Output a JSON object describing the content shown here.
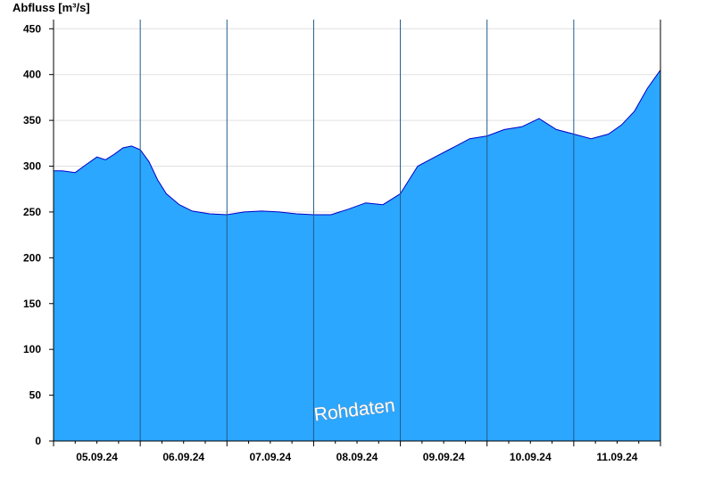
{
  "chart_data": {
    "type": "area",
    "ylabel": "Abfluss [m³/s]",
    "ylim": [
      0,
      460
    ],
    "yticks": [
      0,
      50,
      100,
      150,
      200,
      250,
      300,
      350,
      400,
      450
    ],
    "xlim": [
      0,
      7
    ],
    "day_ticks": [
      "05.09.24",
      "06.09.24",
      "07.09.24",
      "08.09.24",
      "09.09.24",
      "10.09.24",
      "11.09.24"
    ],
    "x_unit": "days from 05.09.24 00:00",
    "grid": true,
    "watermark": "Rohdaten",
    "colors": {
      "fill": "#2ca7ff",
      "line": "#0000c8",
      "axis": "#000000",
      "grid": "#e0e0e0",
      "separator": "#1f5a8a"
    },
    "series": [
      {
        "x": [
          0,
          0.1,
          0.25,
          0.35,
          0.5,
          0.6,
          0.7,
          0.8,
          0.9,
          1.0,
          1.1,
          1.2,
          1.3,
          1.45,
          1.6,
          1.8,
          2.0,
          2.2,
          2.4,
          2.6,
          2.8,
          3.0,
          3.2,
          3.4,
          3.6,
          3.8,
          4.0,
          4.2,
          4.4,
          4.6,
          4.8,
          5.0,
          5.2,
          5.4,
          5.6,
          5.8,
          6.0,
          6.2,
          6.4,
          6.55,
          6.7,
          6.85,
          7.0
        ],
        "y": [
          295,
          295,
          293,
          300,
          310,
          307,
          313,
          320,
          322,
          318,
          305,
          285,
          270,
          258,
          251,
          248,
          247,
          250,
          251,
          250,
          248,
          247,
          247,
          253,
          260,
          258,
          270,
          300,
          310,
          320,
          330,
          333,
          340,
          343,
          352,
          340,
          335,
          330,
          335,
          345,
          360,
          385,
          405
        ]
      }
    ]
  }
}
